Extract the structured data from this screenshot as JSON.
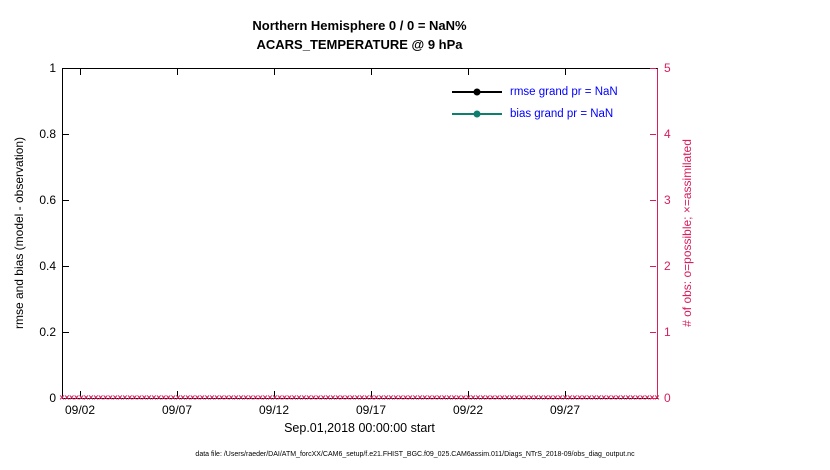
{
  "title": {
    "line1": "Northern Hemisphere 0 / 0 = NaN%",
    "line2": "ACARS_TEMPERATURE @ 9 hPa"
  },
  "left_axis": {
    "label": "rmse and bias (model - observation)",
    "ticks": [
      "0",
      "0.2",
      "0.4",
      "0.6",
      "0.8",
      "1"
    ]
  },
  "right_axis": {
    "label": "# of obs: o=possible; ×=assimilated",
    "ticks": [
      "0",
      "1",
      "2",
      "3",
      "4",
      "5"
    ]
  },
  "x_axis": {
    "ticks": [
      "09/02",
      "09/07",
      "09/12",
      "09/17",
      "09/22",
      "09/27"
    ],
    "label": "Sep.01,2018 00:00:00 start"
  },
  "legend": {
    "items": [
      {
        "label": "rmse grand pr = NaN",
        "color": "#000000"
      },
      {
        "label": "bias grand pr = NaN",
        "color": "#0e7f6f"
      }
    ]
  },
  "footer": "data file: /Users/raeder/DAI/ATM_forcXX/CAM6_setup/f.e21.FHIST_BGC.f09_025.CAM6assim.011/Diags_NTrS_2018-09/obs_diag_output.nc",
  "colors": {
    "right_axis": "#d81e5b",
    "legend_text": "#0000ff",
    "bias_series": "#0e7f6f",
    "rmse_series": "#000000"
  },
  "obs_markers": {
    "symbol": "×",
    "count": 124,
    "value": 0
  },
  "chart_data": {
    "type": "line",
    "title": "Northern Hemisphere 0 / 0 = NaN%",
    "subtitle": "ACARS_TEMPERATURE @ 9 hPa",
    "xlabel": "Sep.01,2018 00:00:00 start",
    "ylabel_left": "rmse and bias (model - observation)",
    "ylabel_right": "# of obs: o=possible; ×=assimilated",
    "ylim_left": [
      0,
      1
    ],
    "ylim_right": [
      0,
      5
    ],
    "x_tick_labels": [
      "09/02",
      "09/07",
      "09/12",
      "09/17",
      "09/22",
      "09/27"
    ],
    "x_range": [
      "2018-09-01",
      "2018-10-01"
    ],
    "grid": false,
    "legend_position": "top-right-inside",
    "series": [
      {
        "name": "rmse grand pr = NaN",
        "type": "line+marker",
        "color": "#000000",
        "values": "NaN (nothing plotted)"
      },
      {
        "name": "bias grand pr = NaN",
        "type": "line+marker",
        "color": "#0e7f6f",
        "values": "NaN (nothing plotted)"
      },
      {
        "name": "assimilated obs count",
        "type": "scatter",
        "marker": "×",
        "color": "#d81e5b",
        "axis": "right",
        "constant_value": 0,
        "n_points": 124
      }
    ]
  }
}
